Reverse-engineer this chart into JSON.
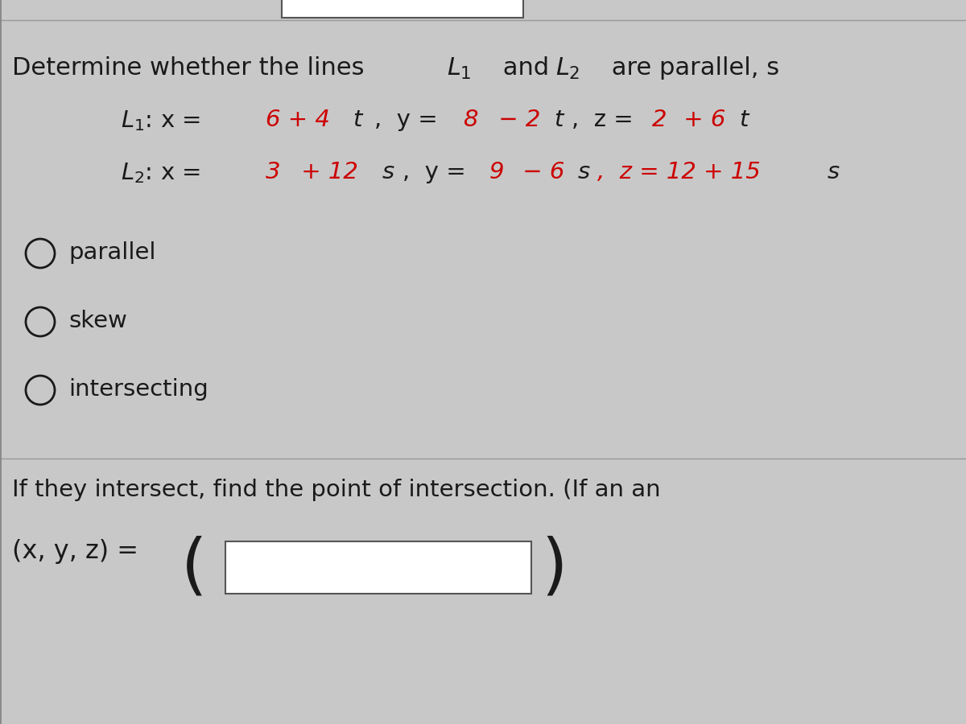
{
  "bg_color": "#c8c8c8",
  "title_text": "Determine whether the lines  ",
  "title_L1": "L",
  "title_L2": "L",
  "title_rest": "  are parallel, s",
  "line1_prefix": "L",
  "line1_eq": ": x = ",
  "line1_vals": "6 + 4t,  y = ",
  "line1_y_start": "8",
  "line1_y_mid": " − 2t,  z = ",
  "line1_z_start": "2",
  "line1_z_mid": " + 6t",
  "line2_prefix": "L",
  "line2_eq": ": x = ",
  "line2_vals": "3",
  "line2_rest": " + 12s,  y = ",
  "line2_y_start": "9",
  "line2_y_mid": " − 6s,  z = 12 + 15s",
  "option1": "parallel",
  "option2": "skew",
  "option3": "intersecting",
  "bottom_text": "If they intersect, find the point of intersection. (If an an",
  "coord_label": "(x, y, z) =",
  "text_color": "#1a1a1a",
  "red_color": "#cc0000",
  "font_size_title": 22,
  "font_size_eq": 21,
  "font_size_option": 21,
  "font_size_bottom": 21
}
